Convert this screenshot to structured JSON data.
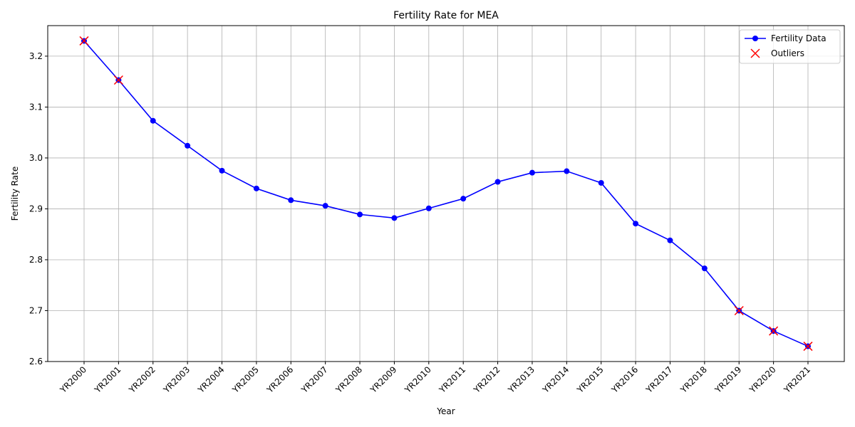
{
  "chart_data": {
    "type": "line",
    "title": "Fertility Rate for MEA",
    "xlabel": "Year",
    "ylabel": "Fertility Rate",
    "categories": [
      "YR2000",
      "YR2001",
      "YR2002",
      "YR2003",
      "YR2004",
      "YR2005",
      "YR2006",
      "YR2007",
      "YR2008",
      "YR2009",
      "YR2010",
      "YR2011",
      "YR2012",
      "YR2013",
      "YR2014",
      "YR2015",
      "YR2016",
      "YR2017",
      "YR2018",
      "YR2019",
      "YR2020",
      "YR2021"
    ],
    "series": [
      {
        "name": "Fertility Data",
        "color": "#0000ff",
        "values": [
          3.23,
          3.153,
          3.073,
          3.024,
          2.975,
          2.94,
          2.917,
          2.906,
          2.889,
          2.882,
          2.901,
          2.92,
          2.953,
          2.971,
          2.974,
          2.951,
          2.871,
          2.838,
          2.783,
          2.7,
          2.66,
          2.63
        ]
      }
    ],
    "outliers": {
      "name": "Outliers",
      "color": "#ff0000",
      "categories": [
        "YR2000",
        "YR2001",
        "YR2019",
        "YR2020",
        "YR2021"
      ],
      "values": [
        3.23,
        3.153,
        2.7,
        2.66,
        2.63
      ]
    },
    "ylim": [
      2.6,
      3.26
    ],
    "yticks": [
      "2.6",
      "2.7",
      "2.8",
      "2.9",
      "3.0",
      "3.1",
      "3.2"
    ],
    "grid": true,
    "legend_position": "top-right"
  }
}
